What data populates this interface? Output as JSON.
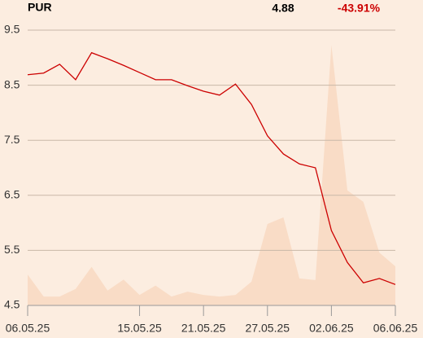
{
  "chart_data": {
    "type": "line",
    "symbol": "PUR",
    "price": "4.88",
    "change": "-43.91%",
    "categories": [
      "06.05.25",
      null,
      null,
      null,
      null,
      null,
      null,
      "15.05.25",
      null,
      null,
      null,
      "21.05.25",
      null,
      null,
      null,
      "27.05.25",
      null,
      null,
      null,
      "02.06.25",
      null,
      null,
      null,
      "06.06.25"
    ],
    "series": [
      {
        "kind": "area",
        "color": "#f9dcc6",
        "values": [
          5.06,
          4.66,
          4.66,
          4.8,
          5.2,
          4.77,
          4.97,
          4.69,
          4.86,
          4.66,
          4.75,
          4.69,
          4.66,
          4.69,
          4.93,
          5.98,
          6.1,
          4.99,
          4.96,
          9.23,
          6.59,
          6.38,
          5.46,
          5.21
        ]
      },
      {
        "kind": "line",
        "color": "#cc0000",
        "values": [
          8.69,
          8.72,
          8.88,
          8.6,
          9.09,
          8.98,
          8.86,
          8.73,
          8.6,
          8.6,
          8.49,
          8.39,
          8.32,
          8.52,
          8.15,
          7.58,
          7.25,
          7.07,
          7.0,
          5.86,
          5.28,
          4.91,
          4.99,
          4.88
        ]
      }
    ],
    "ylim": [
      4.5,
      9.5
    ],
    "yticks": [
      4.5,
      5.5,
      6.5,
      7.5,
      8.5,
      9.5
    ],
    "grid": true
  }
}
